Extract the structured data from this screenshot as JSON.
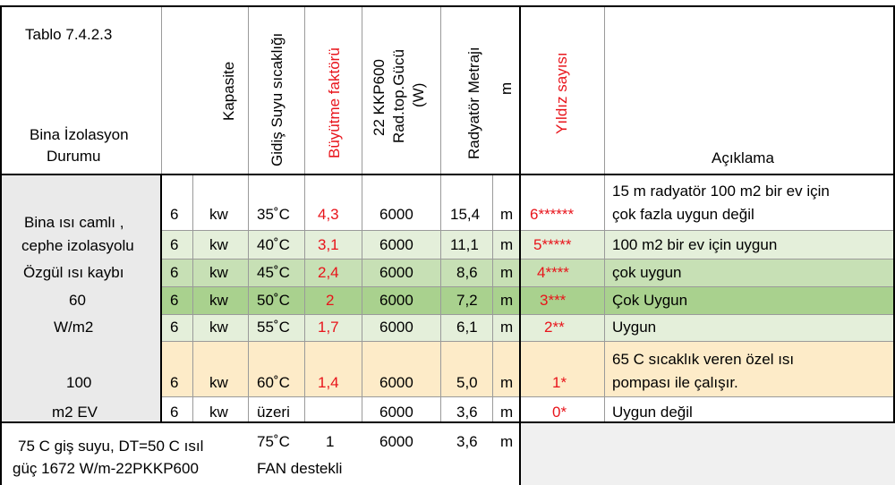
{
  "header": {
    "table_id": "Tablo 7.4.2.3",
    "bina_line1": "Bina İzolasyon",
    "bina_line2": "Durumu",
    "kapasite": "Kapasite",
    "gidis": "Gidiş Suyu sıcaklığı",
    "buyutme": "Büyütme faktörü",
    "rad_line1": "22 KKP600",
    "rad_line2": "Rad.top.Gücü",
    "rad_line3": "(W)",
    "metraj": "Radyatör Metrajı",
    "m_unit": "m",
    "yildiz": "Yıldız sayısı",
    "aciklama": "Açıklama"
  },
  "left_label": {
    "l1": "Bina ısı camlı ,",
    "l2": "cephe izolasyolu",
    "l3": "Özgül ısı kaybı",
    "l4": "60",
    "l5": "W/m2",
    "l6": "100",
    "l7": "m2 EV"
  },
  "rows": [
    {
      "cap": "6",
      "unit": "kw",
      "temp": "35˚C",
      "factor": "4,3",
      "power": "6000",
      "length": "15,4",
      "m": "m",
      "stars": "6******",
      "desc1": "15 m radyatör 100 m2 bir ev için",
      "desc2": "çok fazla uygun değil"
    },
    {
      "cap": "6",
      "unit": "kw",
      "temp": "40˚C",
      "factor": "3,1",
      "power": "6000",
      "length": "11,1",
      "m": "m",
      "stars": "5*****",
      "desc1": "100 m2 bir ev için  uygun",
      "desc2": ""
    },
    {
      "cap": "6",
      "unit": "kw",
      "temp": "45˚C",
      "factor": "2,4",
      "power": "6000",
      "length": "8,6",
      "m": "m",
      "stars": "4****",
      "desc1": "çok uygun",
      "desc2": ""
    },
    {
      "cap": "6",
      "unit": "kw",
      "temp": "50˚C",
      "factor": "2",
      "power": "6000",
      "length": "7,2",
      "m": "m",
      "stars": "3***",
      "desc1": "Çok Uygun",
      "desc2": ""
    },
    {
      "cap": "6",
      "unit": "kw",
      "temp": "55˚C",
      "factor": "1,7",
      "power": "6000",
      "length": "6,1",
      "m": "m",
      "stars": "2**",
      "desc1": "Uygun",
      "desc2": ""
    },
    {
      "cap": "6",
      "unit": "kw",
      "temp": "60˚C",
      "factor": "1,4",
      "power": "6000",
      "length": "5,0",
      "m": "m",
      "stars": "1*",
      "desc1": "65 C sıcaklık veren özel ısı",
      "desc2": "pompası ile çalışır."
    },
    {
      "cap": "6",
      "unit": "kw",
      "temp": "üzeri",
      "factor": "",
      "power": "6000",
      "length": "3,6",
      "m": "m",
      "stars": "0*",
      "desc1": "Uygun değil",
      "desc2": ""
    }
  ],
  "footer": {
    "note1": "75 C giş suyu, DT=50 C ısıl",
    "note2": "güç 1672 W/m-22PKKP600",
    "temp": "75˚C",
    "fan": "FAN destekli",
    "factor": "1",
    "power": "6000",
    "length": "3,6",
    "m": "m"
  },
  "colors": {
    "header_bg": "#ffffff",
    "left_bg": "#eaeaea",
    "row_white": "#ffffff",
    "row_green_light": "#e4efda",
    "row_green_mid": "#c7e0b5",
    "row_green_dark": "#a9d18e",
    "row_peach": "#fdebc8",
    "red_text": "#e8141b"
  }
}
